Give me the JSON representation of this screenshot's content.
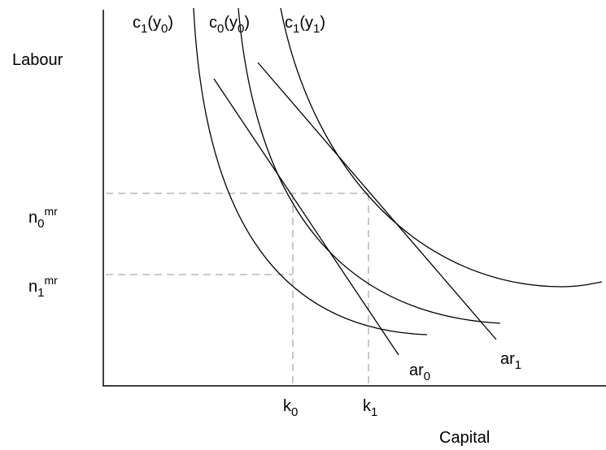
{
  "axes": {
    "y_label": "Labour",
    "x_label": "Capital"
  },
  "curves": [
    {
      "label": [
        {
          "base": "c",
          "sub": "1"
        },
        {
          "base": "(y",
          "sub": "0"
        },
        {
          "base": ")"
        }
      ]
    },
    {
      "label": [
        {
          "base": "c",
          "sub": "0"
        },
        {
          "base": "(y",
          "sub": "0"
        },
        {
          "base": ")"
        }
      ]
    },
    {
      "label": [
        {
          "base": "c",
          "sub": "1"
        },
        {
          "base": "(y",
          "sub": "1"
        },
        {
          "base": ")"
        }
      ]
    }
  ],
  "lines": [
    {
      "label": [
        {
          "base": "ar",
          "sub": "0"
        }
      ]
    },
    {
      "label": [
        {
          "base": "ar",
          "sub": "1"
        }
      ]
    }
  ],
  "levels": [
    {
      "label": [
        {
          "base": "n",
          "sub": "0",
          "sup": "mr"
        }
      ]
    },
    {
      "label": [
        {
          "base": "n",
          "sub": "1",
          "sup": "mr"
        }
      ]
    },
    {
      "label": [
        {
          "base": "k",
          "sub": "0"
        }
      ]
    },
    {
      "label": [
        {
          "base": "k",
          "sub": "1"
        }
      ]
    }
  ]
}
